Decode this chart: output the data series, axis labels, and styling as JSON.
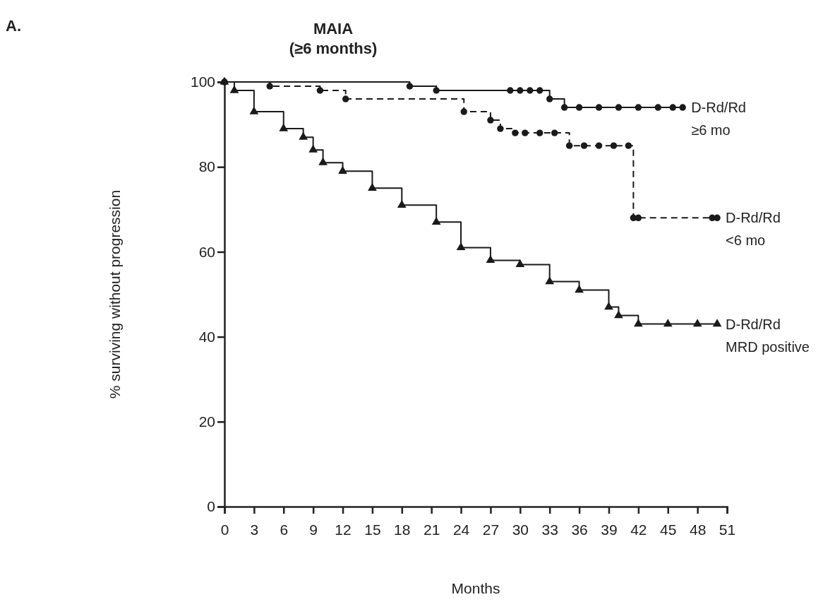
{
  "chart_data": {
    "type": "step",
    "title": "MAIA",
    "subtitle": "(≥6 months)",
    "xlabel": "Months",
    "ylabel": "% surviving without progression",
    "annotations": [
      "A."
    ],
    "xlim": [
      0,
      51
    ],
    "xticks": [
      0,
      3,
      6,
      9,
      12,
      15,
      18,
      21,
      24,
      27,
      30,
      33,
      36,
      39,
      42,
      45,
      48,
      51
    ],
    "ylim": [
      0,
      100
    ],
    "yticks": [
      0,
      20,
      40,
      60,
      80,
      100
    ],
    "grid": false,
    "legend": false,
    "series": [
      {
        "name": "D-Rd/Rd\n≥6 mo",
        "color": "#1a1a1a",
        "line_style": "solid",
        "marker": "circle",
        "x": [
          0,
          18.8,
          21.5,
          29,
          30,
          31,
          32,
          33,
          34.5,
          36,
          38,
          40,
          42,
          44,
          45.5,
          46.5
        ],
        "values": [
          100,
          99,
          98,
          98,
          98,
          98,
          98,
          96,
          94,
          94,
          94,
          94,
          94,
          94,
          94,
          94
        ]
      },
      {
        "name": "D-Rd/Rd\n<6 mo",
        "color": "#1a1a1a",
        "line_style": "dashed",
        "marker": "circle",
        "x": [
          0,
          4.6,
          9.7,
          12.3,
          24.3,
          27,
          28,
          29.5,
          30.5,
          32,
          33.5,
          35,
          36.5,
          38,
          39.5,
          41,
          41.5,
          42,
          49.5,
          50
        ],
        "values": [
          100,
          99,
          98,
          96,
          93,
          91,
          89,
          88,
          88,
          88,
          88,
          85,
          85,
          85,
          85,
          85,
          68,
          68,
          68,
          68
        ]
      },
      {
        "name": "D-Rd/Rd\nMRD positive",
        "color": "#1a1a1a",
        "line_style": "solid",
        "marker": "triangle",
        "x": [
          0,
          1,
          3,
          6,
          8,
          9,
          10,
          12,
          15,
          18,
          21.5,
          24,
          27,
          30,
          33,
          36,
          39,
          40,
          42,
          45,
          48,
          50
        ],
        "values": [
          100,
          98,
          93,
          89,
          87,
          84,
          81,
          79,
          75,
          71,
          67,
          61,
          58,
          57,
          53,
          51,
          47,
          45,
          43,
          43,
          43,
          43
        ]
      }
    ]
  }
}
